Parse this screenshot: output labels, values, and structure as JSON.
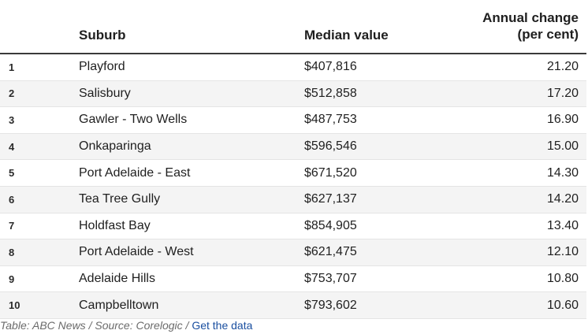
{
  "table": {
    "headers": {
      "rank": "",
      "suburb": "Suburb",
      "median_value": "Median value",
      "annual_change_line1": "Annual change",
      "annual_change_line2": "(per cent)"
    },
    "rows": [
      {
        "rank": "1",
        "suburb": "Playford",
        "median_value": "$407,816",
        "annual_change": "21.20"
      },
      {
        "rank": "2",
        "suburb": "Salisbury",
        "median_value": "$512,858",
        "annual_change": "17.20"
      },
      {
        "rank": "3",
        "suburb": "Gawler - Two Wells",
        "median_value": "$487,753",
        "annual_change": "16.90"
      },
      {
        "rank": "4",
        "suburb": "Onkaparinga",
        "median_value": "$596,546",
        "annual_change": "15.00"
      },
      {
        "rank": "5",
        "suburb": "Port Adelaide - East",
        "median_value": "$671,520",
        "annual_change": "14.30"
      },
      {
        "rank": "6",
        "suburb": "Tea Tree Gully",
        "median_value": "$627,137",
        "annual_change": "14.20"
      },
      {
        "rank": "7",
        "suburb": "Holdfast Bay",
        "median_value": "$854,905",
        "annual_change": "13.40"
      },
      {
        "rank": "8",
        "suburb": "Port Adelaide - West",
        "median_value": "$621,475",
        "annual_change": "12.10"
      },
      {
        "rank": "9",
        "suburb": "Adelaide Hills",
        "median_value": "$753,707",
        "annual_change": "10.80"
      },
      {
        "rank": "10",
        "suburb": "Campbelltown",
        "median_value": "$793,602",
        "annual_change": "10.60"
      }
    ]
  },
  "footer": {
    "table_credit": "Table: ABC News",
    "separator": " / ",
    "source": "Source: Corelogic",
    "separator2": " / ",
    "link_label": "Get the data"
  },
  "colors": {
    "link": "#1a4fa0",
    "stripe": "#f4f4f4",
    "header_rule": "#3a3a3a"
  }
}
